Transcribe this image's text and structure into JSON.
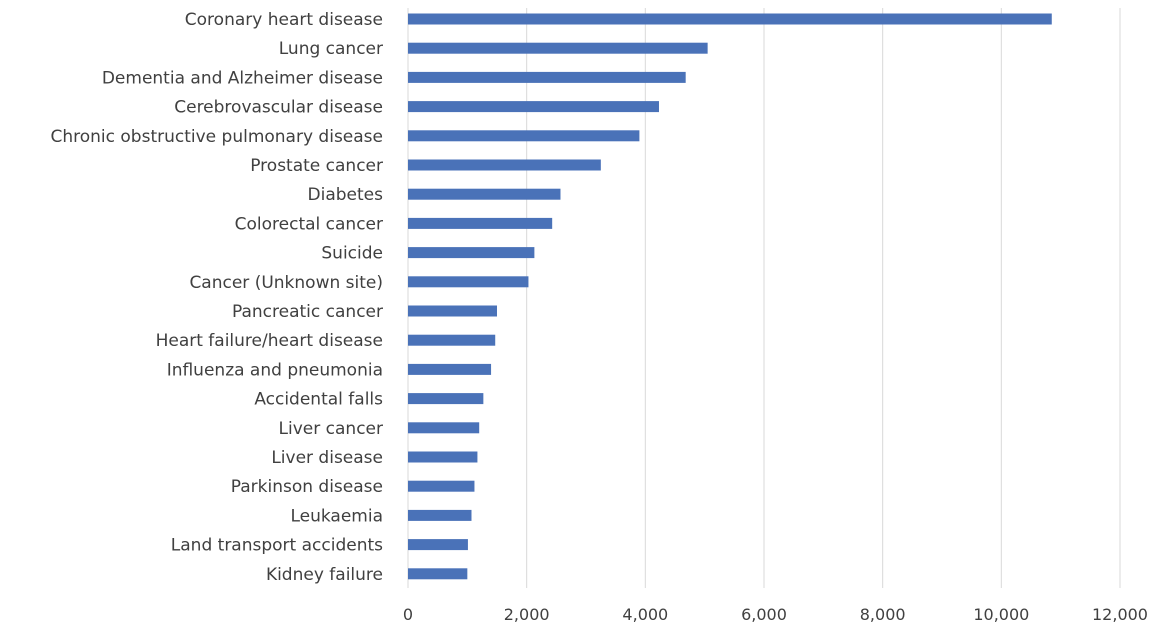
{
  "chart_data": {
    "type": "bar",
    "orientation": "horizontal",
    "title": "",
    "xlabel": "",
    "ylabel": "",
    "xlim": [
      0,
      12000
    ],
    "x_ticks": [
      0,
      2000,
      4000,
      6000,
      8000,
      10000,
      12000
    ],
    "x_tick_labels": [
      "0",
      "2,000",
      "4,000",
      "6,000",
      "8,000",
      "10,000",
      "12,000"
    ],
    "grid": "vertical",
    "legend": "none",
    "bar_color": "#4a72b8",
    "categories": [
      "Coronary heart disease",
      "Lung cancer",
      "Dementia and Alzheimer disease",
      "Cerebrovascular disease",
      "Chronic obstructive pulmonary disease",
      "Prostate cancer",
      "Diabetes",
      "Colorectal cancer",
      "Suicide",
      "Cancer (Unknown site)",
      "Pancreatic cancer",
      "Heart failure/heart disease",
      "Influenza and pneumonia",
      "Accidental falls",
      "Liver cancer",
      "Liver disease",
      "Parkinson disease",
      "Leukaemia",
      "Land transport accidents",
      "Kidney failure"
    ],
    "values": [
      10850,
      5050,
      4680,
      4230,
      3900,
      3250,
      2570,
      2430,
      2130,
      2030,
      1500,
      1470,
      1400,
      1270,
      1200,
      1170,
      1120,
      1070,
      1010,
      1000
    ]
  }
}
